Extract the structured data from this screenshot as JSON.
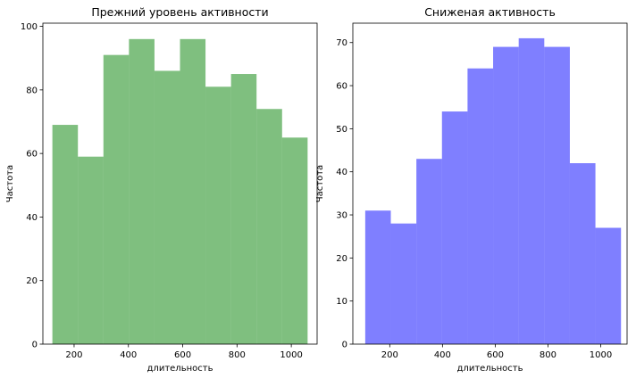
{
  "chart_data": [
    {
      "type": "histogram",
      "title": "Прежний уровень активности",
      "xlabel": "длительность",
      "ylabel": "Частота",
      "color": "#008000",
      "opacity": 0.5,
      "xlim": [
        85,
        1095
      ],
      "ylim": [
        0,
        101
      ],
      "xticks": [
        200,
        400,
        600,
        800,
        1000
      ],
      "yticks": [
        0,
        20,
        40,
        60,
        80,
        100
      ],
      "bin_edges": [
        120,
        214,
        308,
        402,
        496,
        590,
        684,
        778,
        872,
        966,
        1060
      ],
      "values": [
        69,
        59,
        91,
        96,
        86,
        96,
        81,
        85,
        74,
        65
      ]
    },
    {
      "type": "histogram",
      "title": "Сниженая активность",
      "xlabel": "длительность",
      "ylabel": "Частота",
      "color": "#0000ff",
      "opacity": 0.5,
      "xlim": [
        60,
        1100
      ],
      "ylim": [
        0,
        74.5
      ],
      "xticks": [
        200,
        400,
        600,
        800,
        1000
      ],
      "yticks": [
        0,
        10,
        20,
        30,
        40,
        50,
        60,
        70
      ],
      "bin_edges": [
        107,
        204,
        301,
        398,
        495,
        592,
        689,
        786,
        883,
        980,
        1077
      ],
      "values": [
        31,
        28,
        43,
        54,
        64,
        69,
        71,
        69,
        42,
        27
      ]
    }
  ]
}
